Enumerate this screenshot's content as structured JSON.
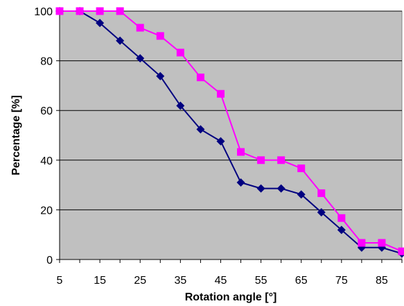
{
  "chart_data": {
    "type": "line",
    "title": "",
    "xlabel": "Rotation angle [°]",
    "ylabel": "Percentage [%]",
    "xlim": [
      5,
      90
    ],
    "ylim": [
      0,
      100
    ],
    "x_ticks": [
      "5",
      "15",
      "25",
      "35",
      "45",
      "55",
      "65",
      "75",
      "85"
    ],
    "y_ticks": [
      "0",
      "20",
      "40",
      "60",
      "80",
      "100"
    ],
    "grid": "horizontal",
    "legend": "none",
    "plot_background": "#c0c0c0",
    "x": [
      5,
      10,
      15,
      20,
      25,
      30,
      35,
      40,
      45,
      50,
      55,
      60,
      65,
      70,
      75,
      80,
      85,
      90
    ],
    "series": [
      {
        "color": "#000080",
        "marker": "diamond",
        "values": [
          100,
          100,
          95.2,
          88.1,
          81,
          73.8,
          61.9,
          52.4,
          47.6,
          31,
          28.6,
          28.6,
          26.2,
          19,
          11.9,
          4.8,
          4.8,
          2.4
        ]
      },
      {
        "color": "#ff00ff",
        "marker": "square",
        "values": [
          100,
          100,
          100,
          100,
          93.3,
          90,
          83.3,
          73.3,
          66.7,
          43.3,
          40,
          40,
          36.7,
          26.7,
          16.7,
          6.7,
          6.7,
          3.3
        ]
      }
    ]
  }
}
